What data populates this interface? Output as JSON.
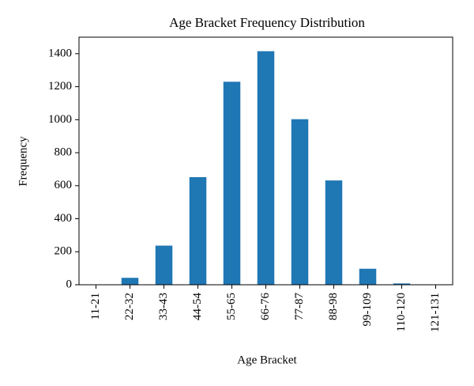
{
  "chart_data": {
    "type": "bar",
    "title": "Age Bracket Frequency Distribution",
    "x_label": "Age Bracket",
    "y_label": "Frequency",
    "categories": [
      "11-21",
      "22-32",
      "33-43",
      "44-54",
      "55-65",
      "66-76",
      "77-87",
      "88-98",
      "99-109",
      "110-120",
      "121-131"
    ],
    "values": [
      0,
      42,
      237,
      652,
      1230,
      1415,
      1003,
      632,
      97,
      8,
      0
    ],
    "color": "#1f77b4",
    "ylim": [
      0,
      1500
    ],
    "yticks": [
      0,
      200,
      400,
      600,
      800,
      1000,
      1200,
      1400
    ],
    "grid": false
  }
}
